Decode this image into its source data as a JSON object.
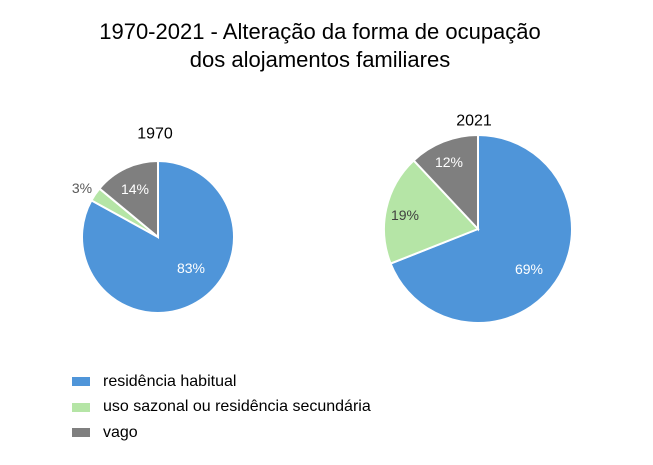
{
  "title_lines": [
    "1970-2021  - Alteração da forma de ocupação",
    "dos alojamentos familiares"
  ],
  "colors": {
    "residencia_habitual": "#4f95d9",
    "uso_sazonal": "#b5e5a6",
    "vago": "#7f7f7f"
  },
  "chart_data": [
    {
      "type": "pie",
      "title": "1970",
      "categories": [
        "residência habitual",
        "uso sazonal ou residência secundária",
        "vago"
      ],
      "values": [
        83,
        3,
        14
      ],
      "labels": [
        "83%",
        "3%",
        "14%"
      ],
      "start": "top, clockwise",
      "legend": "bottom-left"
    },
    {
      "type": "pie",
      "title": "2021",
      "categories": [
        "residência habitual",
        "uso sazonal ou residência secundária",
        "vago"
      ],
      "values": [
        69,
        19,
        12
      ],
      "labels": [
        "69%",
        "19%",
        "12%"
      ],
      "start": "top, clockwise",
      "legend": "bottom-left"
    }
  ],
  "legend": [
    {
      "label": "residência habitual",
      "color_key": "residencia_habitual"
    },
    {
      "label": "uso sazonal ou residência secundária",
      "color_key": "uso_sazonal"
    },
    {
      "label": "vago",
      "color_key": "vago"
    }
  ]
}
